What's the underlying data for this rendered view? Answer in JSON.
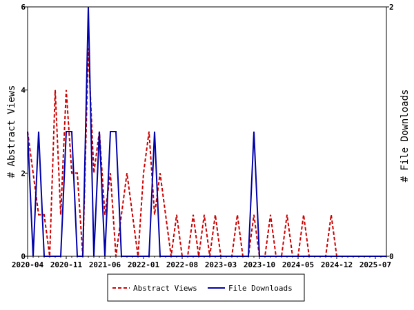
{
  "chart_data": {
    "type": "line",
    "title": "",
    "ylabel_left": "# Abstract Views",
    "ylabel_right": "# File Downloads",
    "ylim_left": [
      0,
      6
    ],
    "ylim_right": [
      0,
      2
    ],
    "yticks_left": [
      "0",
      "2",
      "4",
      "6"
    ],
    "yticks_right": [
      "0",
      "2"
    ],
    "x_start": "2020-04",
    "x_end": "2025-09",
    "xticks": [
      "2020-04",
      "2020-11",
      "2021-06",
      "2022-01",
      "2022-08",
      "2023-03",
      "2023-10",
      "2024-05",
      "2024-12",
      "2025-07"
    ],
    "grid": false,
    "legend_position": "bottom",
    "series": [
      {
        "name": "Abstract Views",
        "axis": "left",
        "color": "#cc0000",
        "style": "dashed",
        "x": [
          "2020-04",
          "2020-05",
          "2020-06",
          "2020-07",
          "2020-08",
          "2020-09",
          "2020-10",
          "2020-11",
          "2020-12",
          "2021-01",
          "2021-02",
          "2021-03",
          "2021-04",
          "2021-05",
          "2021-06",
          "2021-07",
          "2021-08",
          "2021-09",
          "2021-10",
          "2021-11",
          "2021-12",
          "2022-01",
          "2022-02",
          "2022-03",
          "2022-04",
          "2022-05",
          "2022-06",
          "2022-07",
          "2022-08",
          "2022-09",
          "2022-10",
          "2022-11",
          "2022-12",
          "2023-01",
          "2023-02",
          "2023-03",
          "2023-04",
          "2023-05",
          "2023-06",
          "2023-07",
          "2023-08",
          "2023-09",
          "2023-10",
          "2023-11",
          "2023-12",
          "2024-01",
          "2024-02",
          "2024-03",
          "2024-04",
          "2024-05",
          "2024-06",
          "2024-07",
          "2024-08",
          "2024-09",
          "2024-10",
          "2024-11",
          "2024-12",
          "2025-01",
          "2025-02",
          "2025-03",
          "2025-04",
          "2025-05",
          "2025-06",
          "2025-07",
          "2025-08",
          "2025-09"
        ],
        "values": [
          3,
          2,
          1,
          1,
          0,
          4,
          1,
          4,
          2,
          2,
          0,
          5,
          2,
          3,
          1,
          2,
          0,
          1,
          2,
          1,
          0,
          2,
          3,
          1,
          2,
          1,
          0,
          1,
          0,
          0,
          1,
          0,
          1,
          0,
          1,
          0,
          0,
          0,
          1,
          0,
          0,
          1,
          0,
          0,
          1,
          0,
          0,
          1,
          0,
          0,
          1,
          0,
          0,
          0,
          0,
          1,
          0,
          0,
          0,
          0,
          0,
          0,
          0,
          0,
          0,
          0
        ]
      },
      {
        "name": "File Downloads",
        "axis": "right",
        "color": "#0000aa",
        "style": "solid",
        "x": [
          "2020-04",
          "2020-05",
          "2020-06",
          "2020-07",
          "2020-08",
          "2020-09",
          "2020-10",
          "2020-11",
          "2020-12",
          "2021-01",
          "2021-02",
          "2021-03",
          "2021-04",
          "2021-05",
          "2021-06",
          "2021-07",
          "2021-08",
          "2021-09",
          "2021-10",
          "2021-11",
          "2021-12",
          "2022-01",
          "2022-02",
          "2022-03",
          "2022-04",
          "2022-05",
          "2022-06",
          "2022-07",
          "2022-08",
          "2022-09",
          "2022-10",
          "2022-11",
          "2022-12",
          "2023-01",
          "2023-02",
          "2023-03",
          "2023-04",
          "2023-05",
          "2023-06",
          "2023-07",
          "2023-08",
          "2023-09",
          "2023-10",
          "2023-11",
          "2023-12",
          "2024-01",
          "2024-02",
          "2024-03",
          "2024-04",
          "2024-05",
          "2024-06",
          "2024-07",
          "2024-08",
          "2024-09",
          "2024-10",
          "2024-11",
          "2024-12",
          "2025-01",
          "2025-02",
          "2025-03",
          "2025-04",
          "2025-05",
          "2025-06",
          "2025-07",
          "2025-08",
          "2025-09"
        ],
        "values": [
          1,
          0,
          1,
          0,
          0,
          0,
          0,
          1,
          1,
          0,
          0,
          2,
          0,
          1,
          0,
          1,
          1,
          0,
          0,
          0,
          0,
          0,
          0,
          1,
          0,
          0,
          0,
          0,
          0,
          0,
          0,
          0,
          0,
          0,
          0,
          0,
          0,
          0,
          0,
          0,
          0,
          1,
          0,
          0,
          0,
          0,
          0,
          0,
          0,
          0,
          0,
          0,
          0,
          0,
          0,
          0,
          0,
          0,
          0,
          0,
          0,
          0,
          0,
          0,
          0,
          0
        ]
      }
    ]
  }
}
